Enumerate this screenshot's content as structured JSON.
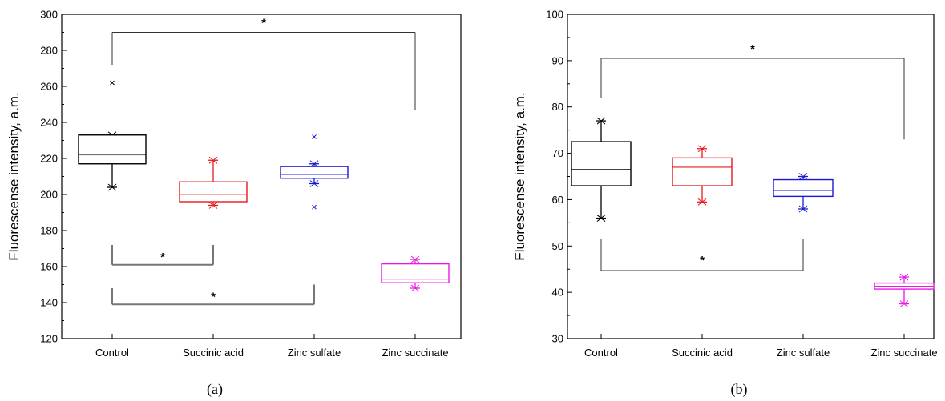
{
  "chart_data": [
    {
      "type": "box",
      "panel_label": "(a)",
      "ylabel": "Fluorescense intensity, a.m.",
      "xlabel": "",
      "ylim": [
        120,
        300
      ],
      "yticks": [
        120,
        140,
        160,
        180,
        200,
        220,
        240,
        260,
        280,
        300
      ],
      "categories": [
        "Control",
        "Succinic acid",
        "Zinc sulfate",
        "Zinc succinate"
      ],
      "colors": [
        "#000000",
        "#e8191c",
        "#1a1ad6",
        "#e81ae8"
      ],
      "boxes": [
        {
          "whisker_low": 204,
          "q1": 217,
          "median": 222,
          "q3": 233,
          "whisker_high": 233,
          "outliers": [
            262
          ]
        },
        {
          "whisker_low": 194,
          "q1": 196,
          "median": 200,
          "q3": 207,
          "whisker_high": 219,
          "outliers": []
        },
        {
          "whisker_low": 206,
          "q1": 209,
          "median": 211,
          "q3": 215.5,
          "whisker_high": 217,
          "outliers": [
            232,
            193
          ]
        },
        {
          "whisker_low": 148,
          "q1": 151,
          "median": 153,
          "q3": 161.5,
          "whisker_high": 164,
          "outliers": []
        }
      ],
      "brackets": [
        {
          "from": 0,
          "to": 3,
          "y": 290,
          "leg_from": 272,
          "leg_to": 247,
          "label": "*",
          "color": "#333333",
          "placement": "above"
        },
        {
          "from": 0,
          "to": 1,
          "y": 161,
          "leg_from": 172,
          "leg_to": 172,
          "label": "*",
          "color": "#777777",
          "placement": "below"
        },
        {
          "from": 0,
          "to": 2,
          "y": 139,
          "leg_from": 148,
          "leg_to": 150,
          "label": "*",
          "color": "#777777",
          "placement": "below"
        }
      ]
    },
    {
      "type": "box",
      "panel_label": "(b)",
      "ylabel": "Fluorescense intensity, a.m.",
      "xlabel": "",
      "ylim": [
        30,
        100
      ],
      "yticks": [
        30,
        40,
        50,
        60,
        70,
        80,
        90,
        100
      ],
      "categories": [
        "Control",
        "Succinic acid",
        "Zinc sulfate",
        "Zinc succinate"
      ],
      "colors": [
        "#000000",
        "#e8191c",
        "#1a1ad6",
        "#e81ae8"
      ],
      "boxes": [
        {
          "whisker_low": 56,
          "q1": 63,
          "median": 66.5,
          "q3": 72.5,
          "whisker_high": 77,
          "outliers": []
        },
        {
          "whisker_low": 59.5,
          "q1": 63,
          "median": 67,
          "q3": 69,
          "whisker_high": 71,
          "outliers": []
        },
        {
          "whisker_low": 58,
          "q1": 60.7,
          "median": 62,
          "q3": 64.3,
          "whisker_high": 65,
          "outliers": []
        },
        {
          "whisker_low": 37.5,
          "q1": 40.7,
          "median": 41.3,
          "q3": 42,
          "whisker_high": 43.3,
          "outliers": []
        }
      ],
      "brackets": [
        {
          "from": 0,
          "to": 3,
          "y": 90.5,
          "leg_from": 82,
          "leg_to": 73,
          "label": "*",
          "color": "#333333",
          "placement": "above"
        },
        {
          "from": 0,
          "to": 2,
          "y": 44.7,
          "leg_from": 51.5,
          "leg_to": 51.5,
          "label": "*",
          "color": "#333333",
          "placement": "above"
        }
      ]
    }
  ]
}
